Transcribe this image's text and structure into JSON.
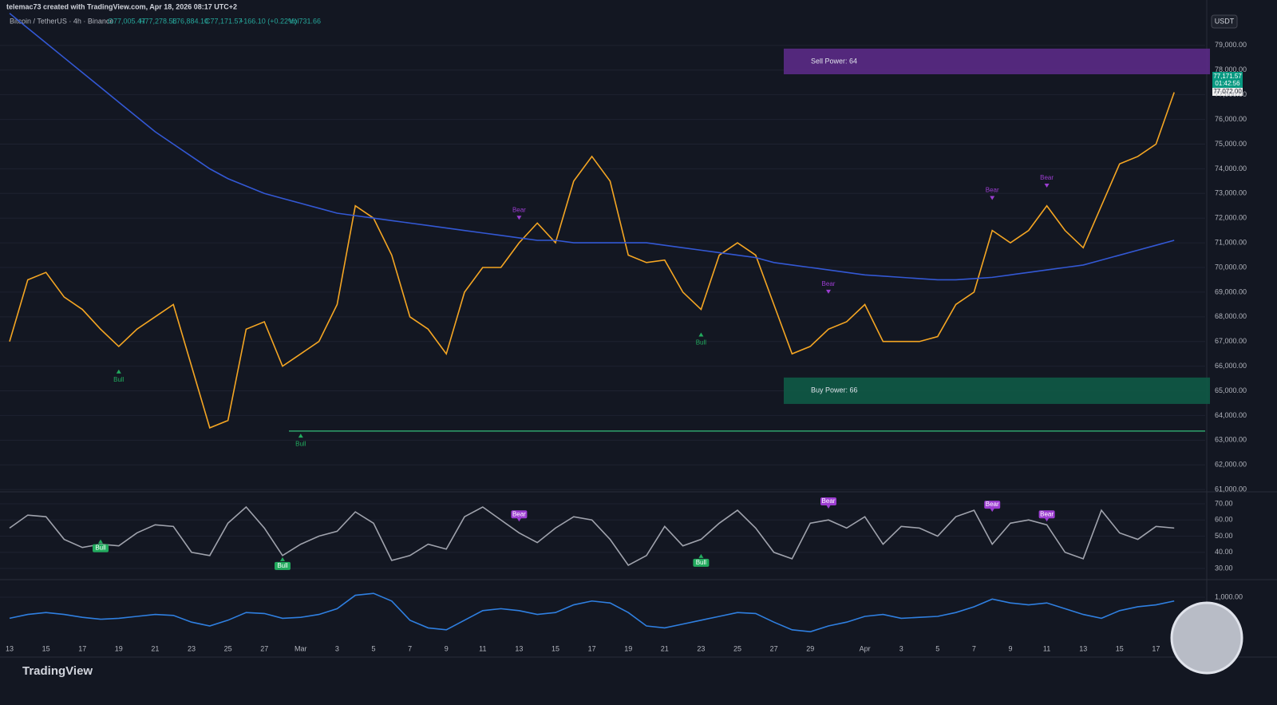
{
  "header": {
    "attribution": "telemac73 created with TradingView.com, Apr 18, 2026 08:17 UTC+2",
    "symbol": "Bitcoin / TetherUS · 4h · Binance",
    "open": "O77,005.47",
    "high": "H77,278.58",
    "low": "L76,884.10",
    "close": "C77,171.57",
    "change": "+166.10 (+0.22%)",
    "volume": "Vol731.66",
    "currency": "USDT",
    "price_labels": [
      "77,171.57",
      "01:42:56",
      "77,072.00"
    ]
  },
  "footer": {
    "logo": "TradingView"
  },
  "chart_data": [
    {
      "type": "line",
      "categories": [
        "13",
        null,
        "15",
        null,
        "17",
        null,
        "19",
        null,
        "21",
        null,
        "23",
        null,
        "25",
        null,
        "27",
        null,
        "Mar",
        null,
        "3",
        null,
        "5",
        null,
        "7",
        null,
        "9",
        null,
        "11",
        null,
        "13",
        null,
        "15",
        null,
        "17",
        null,
        "19",
        null,
        "21",
        null,
        "23",
        null,
        "25",
        null,
        "27",
        null,
        "29",
        null,
        null,
        "Apr",
        null,
        "3",
        null,
        "5",
        null,
        "7",
        null,
        "9",
        null,
        "11",
        null,
        "13",
        null,
        "15",
        null,
        "17",
        null
      ],
      "series": [
        {
          "color": "#f5a623",
          "values": [
            67000,
            69500,
            69800,
            68800,
            68300,
            67500,
            66800,
            67500,
            68000,
            68500,
            66000,
            63500,
            63800,
            67500,
            67800,
            66000,
            66500,
            67000,
            68500,
            72500,
            72000,
            70500,
            68000,
            67500,
            66500,
            69000,
            70000,
            70000,
            71000,
            71800,
            71000,
            73500,
            74500,
            73500,
            70500,
            70200,
            70300,
            69000,
            68300,
            70500,
            71000,
            70500,
            68500,
            66500,
            66800,
            67500,
            67800,
            68500,
            67000,
            67000,
            67000,
            67200,
            68500,
            69000,
            71500,
            71000,
            71500,
            72500,
            71500,
            70800,
            72500,
            74200,
            74500,
            75000,
            77100
          ]
        },
        {
          "color": "#3358d4",
          "values": [
            80300,
            79700,
            79100,
            78500,
            77900,
            77300,
            76700,
            76100,
            75500,
            75000,
            74500,
            74000,
            73600,
            73300,
            73000,
            72800,
            72600,
            72400,
            72200,
            72100,
            72000,
            71900,
            71800,
            71700,
            71600,
            71500,
            71400,
            71300,
            71200,
            71100,
            71100,
            71000,
            71000,
            71000,
            71000,
            71000,
            70900,
            70800,
            70700,
            70600,
            70500,
            70400,
            70200,
            70100,
            70000,
            69900,
            69800,
            69700,
            69650,
            69600,
            69550,
            69500,
            69500,
            69550,
            69600,
            69700,
            69800,
            69900,
            70000,
            70100,
            70300,
            70500,
            70700,
            70900,
            71100
          ]
        }
      ],
      "ylim": [
        60940,
        80840
      ],
      "yticks": [
        {
          "value": 61000,
          "label": "61,000.00"
        },
        {
          "value": 62000,
          "label": "62,000.00"
        },
        {
          "value": 63000,
          "label": "63,000.00"
        },
        {
          "value": 64000,
          "label": "64,000.00"
        },
        {
          "value": 65000,
          "label": "65,000.00"
        },
        {
          "value": 66000,
          "label": "66,000.00"
        },
        {
          "value": 67000,
          "label": "67,000.00"
        },
        {
          "value": 68000,
          "label": "68,000.00"
        },
        {
          "value": 69000,
          "label": "69,000.00"
        },
        {
          "value": 70000,
          "label": "70,000.00"
        },
        {
          "value": 71000,
          "label": "71,000.00"
        },
        {
          "value": 72000,
          "label": "72,000.00"
        },
        {
          "value": 73000,
          "label": "73,000.00"
        },
        {
          "value": 74000,
          "label": "74,000.00"
        },
        {
          "value": 75000,
          "label": "75,000.00"
        },
        {
          "value": 76000,
          "label": "76,000.00"
        },
        {
          "value": 77000,
          "label": "77,000.00"
        },
        {
          "value": 78000,
          "label": "78,000.00"
        },
        {
          "value": 79000,
          "label": "79,000.00"
        }
      ],
      "zones": [
        {
          "text": "Sell Power: 64",
          "range": [
            77830,
            78870
          ],
          "color": "#5b2a86"
        },
        {
          "text": "Buy Power: 66",
          "range": [
            64470,
            65540
          ],
          "color": "#0f5a46"
        }
      ],
      "support_level": 63370,
      "annotations": [
        {
          "text": "Bull",
          "index": 6,
          "value": 65800
        },
        {
          "text": "Bull",
          "index": 16,
          "value": 63200
        },
        {
          "text": "Bear",
          "index": 28,
          "value": 72000
        },
        {
          "text": "Bull",
          "index": 38,
          "value": 67300
        },
        {
          "text": "Bear",
          "index": 45,
          "value": 69000
        },
        {
          "text": "Bear",
          "index": 54,
          "value": 72800
        },
        {
          "text": "Bear",
          "index": 57,
          "value": 73300
        }
      ]
    },
    {
      "type": "line",
      "series": [
        {
          "color": "#a0a3ad",
          "values": [
            55,
            63,
            62,
            48,
            43,
            45,
            44,
            52,
            57,
            56,
            40,
            38,
            58,
            68,
            55,
            38,
            45,
            50,
            53,
            65,
            58,
            35,
            38,
            45,
            42,
            62,
            68,
            60,
            52,
            46,
            55,
            62,
            60,
            48,
            32,
            38,
            56,
            44,
            48,
            58,
            66,
            55,
            40,
            36,
            58,
            60,
            55,
            62,
            45,
            56,
            55,
            50,
            62,
            66,
            45,
            58,
            60,
            57,
            40,
            36,
            66,
            52,
            48,
            56,
            55
          ]
        }
      ],
      "ylim": [
        23.6,
        76.4
      ],
      "yticks": [
        {
          "value": 30,
          "label": "30.00"
        },
        {
          "value": 40,
          "label": "40.00"
        },
        {
          "value": 50,
          "label": "50.00"
        },
        {
          "value": 60,
          "label": "60.00"
        },
        {
          "value": 70,
          "label": "70.00"
        }
      ],
      "annotations": [
        {
          "text": "Bull",
          "index": 5,
          "value": 47
        },
        {
          "text": "Bull",
          "index": 15,
          "value": 36
        },
        {
          "text": "Bear",
          "index": 28,
          "value": 60
        },
        {
          "text": "Bull",
          "index": 38,
          "value": 38
        },
        {
          "text": "Bear",
          "index": 45,
          "value": 68
        },
        {
          "text": "Bear",
          "index": 54,
          "value": 66
        },
        {
          "text": "Bear",
          "index": 57,
          "value": 60
        }
      ]
    },
    {
      "type": "line",
      "series": [
        {
          "color": "#2f7fe0",
          "values": [
            -100,
            100,
            200,
            100,
            -50,
            -150,
            -100,
            0,
            100,
            50,
            -300,
            -500,
            -200,
            200,
            150,
            -100,
            -50,
            100,
            400,
            1100,
            1200,
            800,
            -200,
            -600,
            -700,
            -200,
            300,
            400,
            300,
            100,
            200,
            600,
            800,
            700,
            200,
            -500,
            -600,
            -400,
            -200,
            0,
            200,
            150,
            -300,
            -700,
            -800,
            -500,
            -300,
            0,
            100,
            -100,
            -50,
            0,
            200,
            500,
            900,
            700,
            600,
            700,
            400,
            100,
            -100,
            300,
            500,
            600,
            800
          ]
        }
      ],
      "ylim": [
        -2080,
        1830
      ],
      "yticks": [
        {
          "value": 1000,
          "label": "1,000.00"
        }
      ]
    }
  ]
}
